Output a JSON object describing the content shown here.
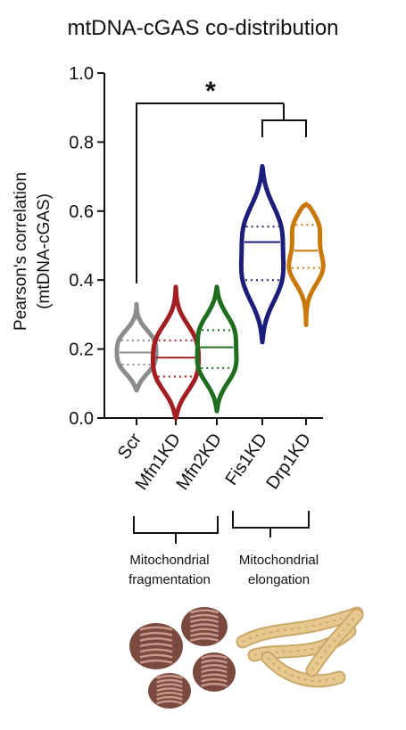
{
  "title": "mtDNA-cGAS co-distribution",
  "chart_data": {
    "type": "violin",
    "title": "mtDNA-cGAS co-distribution",
    "ylabel_line1": "Pearson's correlation",
    "ylabel_line2": "(mtDNA-cGAS)",
    "ylim": [
      0,
      1.0
    ],
    "yticks": [
      "0.0",
      "0.2",
      "0.4",
      "0.6",
      "0.8",
      "1.0"
    ],
    "categories": [
      "Scr",
      "Mfn1KD",
      "Mfn2KD",
      "Fis1KD",
      "Drp1KD"
    ],
    "series": [
      {
        "name": "Scr",
        "color": "#8c8c8c",
        "min": 0.08,
        "max": 0.33,
        "median": 0.19,
        "q1": 0.155,
        "q3": 0.225,
        "maxwidth": 0.14
      },
      {
        "name": "Mfn1KD",
        "color": "#a31e22",
        "min": 0.0,
        "max": 0.38,
        "median": 0.175,
        "q1": 0.12,
        "q3": 0.225,
        "maxwidth": 0.16
      },
      {
        "name": "Mfn2KD",
        "color": "#1f6e1f",
        "min": 0.02,
        "max": 0.38,
        "median": 0.205,
        "q1": 0.145,
        "q3": 0.255,
        "maxwidth": 0.15
      },
      {
        "name": "Fis1KD",
        "color": "#1c1f7a",
        "min": 0.22,
        "max": 0.73,
        "median": 0.51,
        "q1": 0.4,
        "q3": 0.555,
        "maxwidth": 0.16
      },
      {
        "name": "Drp1KD",
        "color": "#c9780a",
        "min": 0.27,
        "max": 0.62,
        "median": 0.485,
        "q1": 0.435,
        "q3": 0.56,
        "maxwidth": 0.14
      }
    ],
    "significance": "*",
    "groups": [
      {
        "label_line1": "Mitochondrial",
        "label_line2": "fragmentation",
        "members": [
          "Scr",
          "Mfn1KD",
          "Mfn2KD"
        ]
      },
      {
        "label_line1": "Mitochondrial",
        "label_line2": "elongation",
        "members": [
          "Fis1KD",
          "Drp1KD"
        ]
      }
    ]
  },
  "illustrations": {
    "fragmented_color": "#7a4a3f",
    "fragmented_crista_color": "#c7978a",
    "elongated_color": "#e7c98f",
    "elongated_outline": "#c9a86a"
  }
}
